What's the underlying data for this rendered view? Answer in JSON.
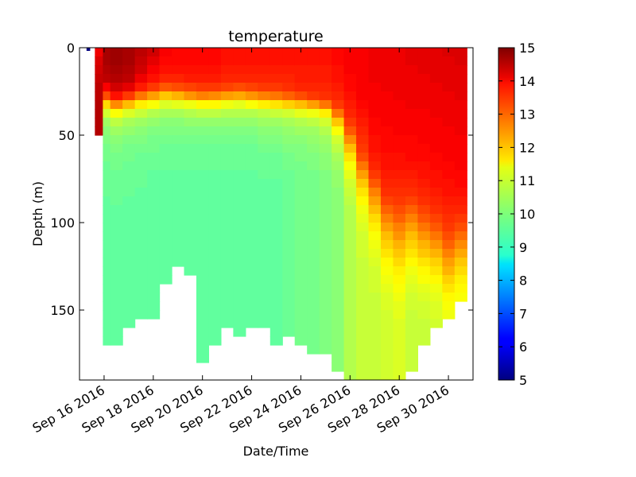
{
  "chart_data": {
    "type": "heatmap",
    "title": "temperature",
    "xlabel": "Date/Time",
    "ylabel": "Depth (m)",
    "x_ticks": [
      "Sep 16 2016",
      "Sep 18 2016",
      "Sep 20 2016",
      "Sep 22 2016",
      "Sep 24 2016",
      "Sep 26 2016",
      "Sep 28 2016",
      "Sep 30 2016"
    ],
    "xlim": [
      "2016-09-15",
      "2016-10-01"
    ],
    "y_ticks": [
      0,
      50,
      100,
      150
    ],
    "ylim": [
      190,
      0
    ],
    "y_inverted": true,
    "colorbar": {
      "label": "",
      "ticks": [
        5,
        6,
        7,
        8,
        9,
        10,
        11,
        12,
        13,
        14,
        15
      ],
      "range": [
        5,
        15
      ],
      "colormap": "jet"
    },
    "grid": false,
    "columns": [
      {
        "day": 0.35,
        "values": [
          5.0
        ]
      },
      {
        "day": 0.9,
        "values": [
          13.9,
          14.1,
          14.2,
          14.3,
          14.4,
          14.4,
          14.5,
          14.5,
          14.5,
          14.5
        ]
      },
      {
        "day": 1.0,
        "values": [
          14.6,
          14.6,
          14.5,
          14.4,
          13.8,
          13.0,
          11.6,
          10.8,
          10.3,
          10.1,
          10.0,
          9.9,
          9.9,
          9.8,
          9.8,
          9.8,
          9.8,
          9.7,
          9.7,
          9.7,
          9.7,
          9.7,
          9.7,
          9.7,
          9.7,
          9.7,
          9.7,
          9.7,
          9.7,
          9.7,
          9.7,
          9.7,
          9.7,
          9.7
        ]
      },
      {
        "day": 1.5,
        "values": [
          14.7,
          14.7,
          14.6,
          14.5,
          14.2,
          13.6,
          12.4,
          11.2,
          10.6,
          10.3,
          10.1,
          10.0,
          9.9,
          9.9,
          9.8,
          9.8,
          9.8,
          9.8,
          9.7,
          9.7,
          9.7,
          9.7,
          9.7,
          9.7,
          9.7,
          9.7,
          9.7,
          9.7,
          9.7,
          9.7,
          9.7,
          9.7,
          9.7,
          9.7
        ]
      },
      {
        "day": 2.0,
        "values": [
          14.6,
          14.6,
          14.5,
          14.4,
          14.0,
          13.2,
          11.9,
          10.9,
          10.4,
          10.2,
          10.0,
          9.9,
          9.9,
          9.8,
          9.8,
          9.8,
          9.8,
          9.7,
          9.7,
          9.7,
          9.7,
          9.7,
          9.7,
          9.7,
          9.7,
          9.7,
          9.7,
          9.7,
          9.7,
          9.7,
          9.7,
          9.7
        ]
      },
      {
        "day": 2.5,
        "values": [
          14.4,
          14.3,
          14.2,
          13.9,
          13.5,
          12.6,
          11.4,
          10.7,
          10.3,
          10.1,
          10.0,
          9.9,
          9.8,
          9.8,
          9.8,
          9.8,
          9.7,
          9.7,
          9.7,
          9.7,
          9.7,
          9.7,
          9.7,
          9.7,
          9.7,
          9.7,
          9.7,
          9.7,
          9.7,
          9.7,
          9.7
        ]
      },
      {
        "day": 3.0,
        "values": [
          14.2,
          14.0,
          13.8,
          13.6,
          13.2,
          12.2,
          11.2,
          10.5,
          10.2,
          10.0,
          9.9,
          9.9,
          9.8,
          9.8,
          9.7,
          9.7,
          9.7,
          9.7,
          9.7,
          9.7,
          9.7,
          9.7,
          9.7,
          9.7,
          9.7,
          9.7,
          9.7,
          9.7,
          9.7,
          9.7,
          9.7
        ]
      },
      {
        "day": 3.5,
        "values": [
          13.8,
          13.7,
          13.6,
          13.4,
          12.9,
          11.8,
          10.9,
          10.4,
          10.1,
          10.0,
          9.9,
          9.8,
          9.8,
          9.8,
          9.7,
          9.7,
          9.7,
          9.7,
          9.7,
          9.7,
          9.7,
          9.7,
          9.7,
          9.7,
          9.7,
          9.7,
          9.7
        ]
      },
      {
        "day": 4.0,
        "values": [
          13.7,
          13.7,
          13.6,
          13.4,
          13.0,
          12.0,
          11.0,
          10.4,
          10.1,
          10.0,
          9.9,
          9.8,
          9.8,
          9.8,
          9.7,
          9.7,
          9.7,
          9.7,
          9.7,
          9.7,
          9.7,
          9.7,
          9.7,
          9.7,
          9.7
        ]
      },
      {
        "day": 4.5,
        "values": [
          13.7,
          13.7,
          13.6,
          13.5,
          13.1,
          12.3,
          11.1,
          10.5,
          10.2,
          10.0,
          9.9,
          9.8,
          9.8,
          9.8,
          9.7,
          9.7,
          9.7,
          9.7,
          9.7,
          9.7,
          9.7,
          9.7,
          9.7,
          9.7,
          9.7,
          9.7
        ]
      },
      {
        "day": 5.0,
        "values": [
          13.7,
          13.7,
          13.6,
          13.5,
          13.2,
          12.5,
          11.3,
          10.6,
          10.2,
          10.0,
          9.9,
          9.8,
          9.8,
          9.8,
          9.7,
          9.7,
          9.7,
          9.7,
          9.7,
          9.7,
          9.7,
          9.7,
          9.7,
          9.7,
          9.7,
          9.7,
          9.7,
          9.7,
          9.7,
          9.7,
          9.7,
          9.7,
          9.7,
          9.7,
          9.7,
          9.7
        ]
      },
      {
        "day": 5.5,
        "values": [
          13.7,
          13.7,
          13.6,
          13.5,
          13.2,
          12.4,
          11.3,
          10.6,
          10.2,
          10.0,
          9.9,
          9.8,
          9.8,
          9.8,
          9.7,
          9.7,
          9.7,
          9.7,
          9.7,
          9.7,
          9.7,
          9.7,
          9.7,
          9.7,
          9.7,
          9.7,
          9.7,
          9.7,
          9.7,
          9.7,
          9.7,
          9.7,
          9.7,
          9.7
        ]
      },
      {
        "day": 6.0,
        "values": [
          13.6,
          13.6,
          13.5,
          13.4,
          13.1,
          12.2,
          11.1,
          10.5,
          10.2,
          10.0,
          9.9,
          9.8,
          9.8,
          9.8,
          9.7,
          9.7,
          9.7,
          9.7,
          9.7,
          9.7,
          9.7,
          9.7,
          9.7,
          9.7,
          9.7,
          9.7,
          9.7,
          9.7,
          9.7,
          9.7,
          9.7,
          9.7
        ]
      },
      {
        "day": 6.5,
        "values": [
          13.6,
          13.6,
          13.5,
          13.4,
          13.0,
          12.1,
          11.0,
          10.5,
          10.2,
          10.0,
          9.9,
          9.8,
          9.8,
          9.8,
          9.7,
          9.7,
          9.7,
          9.7,
          9.7,
          9.7,
          9.7,
          9.7,
          9.7,
          9.7,
          9.7,
          9.7,
          9.7,
          9.7,
          9.7,
          9.7,
          9.7,
          9.7,
          9.7
        ]
      },
      {
        "day": 7.0,
        "values": [
          13.6,
          13.6,
          13.5,
          13.4,
          13.1,
          12.3,
          11.2,
          10.5,
          10.2,
          10.0,
          9.9,
          9.8,
          9.8,
          9.8,
          9.7,
          9.7,
          9.7,
          9.7,
          9.7,
          9.7,
          9.7,
          9.7,
          9.7,
          9.7,
          9.7,
          9.7,
          9.7,
          9.7,
          9.7,
          9.7,
          9.7,
          9.7
        ]
      },
      {
        "day": 7.5,
        "values": [
          13.6,
          13.6,
          13.5,
          13.4,
          13.2,
          12.5,
          11.4,
          10.6,
          10.3,
          10.1,
          10.0,
          9.9,
          9.8,
          9.8,
          9.8,
          9.7,
          9.7,
          9.7,
          9.7,
          9.7,
          9.7,
          9.7,
          9.7,
          9.7,
          9.7,
          9.7,
          9.7,
          9.7,
          9.7,
          9.7,
          9.7,
          9.7
        ]
      },
      {
        "day": 8.0,
        "values": [
          13.6,
          13.6,
          13.5,
          13.4,
          13.2,
          12.6,
          11.5,
          10.7,
          10.3,
          10.1,
          10.0,
          9.9,
          9.8,
          9.8,
          9.8,
          9.7,
          9.7,
          9.7,
          9.7,
          9.7,
          9.7,
          9.7,
          9.7,
          9.7,
          9.7,
          9.7,
          9.7,
          9.7,
          9.7,
          9.7,
          9.7,
          9.7,
          9.7,
          9.7
        ]
      },
      {
        "day": 8.5,
        "values": [
          13.6,
          13.6,
          13.5,
          13.4,
          13.3,
          12.8,
          11.7,
          10.8,
          10.4,
          10.2,
          10.1,
          10.0,
          9.9,
          9.9,
          9.8,
          9.8,
          9.8,
          9.8,
          9.8,
          9.8,
          9.8,
          9.8,
          9.8,
          9.8,
          9.8,
          9.8,
          9.8,
          9.8,
          9.8,
          9.8,
          9.8,
          9.8,
          9.8
        ]
      },
      {
        "day": 9.0,
        "values": [
          13.6,
          13.6,
          13.5,
          13.5,
          13.4,
          13.0,
          11.9,
          11.0,
          10.5,
          10.3,
          10.1,
          10.0,
          10.0,
          9.9,
          9.9,
          9.9,
          9.9,
          9.9,
          9.9,
          9.9,
          9.9,
          9.9,
          9.9,
          9.9,
          9.9,
          9.9,
          9.9,
          9.9,
          9.9,
          9.9,
          9.9,
          9.9,
          9.9,
          9.9
        ]
      },
      {
        "day": 9.5,
        "values": [
          13.6,
          13.6,
          13.5,
          13.5,
          13.4,
          13.2,
          12.2,
          11.1,
          10.6,
          10.3,
          10.2,
          10.1,
          10.0,
          10.0,
          9.9,
          9.9,
          9.9,
          9.9,
          9.9,
          9.9,
          9.9,
          9.9,
          9.9,
          9.9,
          9.9,
          9.9,
          9.9,
          9.9,
          9.9,
          9.9,
          9.9,
          9.9,
          9.9,
          9.9,
          9.9
        ]
      },
      {
        "day": 10.0,
        "values": [
          13.6,
          13.6,
          13.5,
          13.5,
          13.4,
          13.3,
          12.6,
          11.4,
          10.8,
          10.5,
          10.3,
          10.2,
          10.1,
          10.1,
          10.0,
          10.0,
          10.0,
          10.0,
          10.0,
          10.0,
          10.0,
          10.0,
          10.0,
          10.0,
          10.0,
          10.0,
          10.0,
          10.0,
          10.0,
          10.0,
          10.0,
          10.0,
          10.0,
          10.0,
          10.0
        ]
      },
      {
        "day": 10.5,
        "values": [
          13.7,
          13.7,
          13.6,
          13.6,
          13.5,
          13.4,
          13.2,
          12.6,
          11.8,
          11.2,
          10.8,
          10.6,
          10.4,
          10.3,
          10.2,
          10.2,
          10.1,
          10.1,
          10.1,
          10.1,
          10.1,
          10.1,
          10.1,
          10.1,
          10.1,
          10.1,
          10.1,
          10.1,
          10.1,
          10.1,
          10.1,
          10.1,
          10.1,
          10.1,
          10.1,
          10.1,
          10.1
        ]
      },
      {
        "day": 11.0,
        "values": [
          13.8,
          13.8,
          13.8,
          13.7,
          13.7,
          13.6,
          13.5,
          13.4,
          13.2,
          12.9,
          12.4,
          11.9,
          11.5,
          11.2,
          11.0,
          10.8,
          10.7,
          10.6,
          10.5,
          10.5,
          10.5,
          10.5,
          10.5,
          10.5,
          10.5,
          10.5,
          10.5,
          10.5,
          10.5,
          10.5,
          10.5,
          10.5,
          10.5,
          10.5,
          10.5,
          10.5,
          10.5,
          10.5
        ]
      },
      {
        "day": 11.5,
        "values": [
          13.8,
          13.8,
          13.8,
          13.8,
          13.8,
          13.8,
          13.7,
          13.6,
          13.5,
          13.4,
          13.3,
          13.2,
          13.0,
          12.6,
          12.2,
          11.8,
          11.5,
          11.3,
          11.1,
          11.0,
          10.9,
          10.8,
          10.8,
          10.8,
          10.7,
          10.7,
          10.7,
          10.7,
          10.7,
          10.7,
          10.7,
          10.7,
          10.7,
          10.7,
          10.7,
          10.7,
          10.7,
          10.7
        ]
      },
      {
        "day": 12.0,
        "values": [
          13.9,
          13.9,
          13.9,
          13.9,
          13.8,
          13.8,
          13.8,
          13.8,
          13.7,
          13.7,
          13.6,
          13.6,
          13.5,
          13.4,
          13.2,
          12.9,
          12.5,
          12.2,
          11.9,
          11.6,
          11.4,
          11.2,
          11.1,
          11.0,
          10.9,
          10.8,
          10.8,
          10.8,
          10.7,
          10.7,
          10.7,
          10.7,
          10.7,
          10.7,
          10.7,
          10.7,
          10.7,
          10.7
        ]
      },
      {
        "day": 12.5,
        "values": [
          13.9,
          13.9,
          13.9,
          13.9,
          13.9,
          13.8,
          13.8,
          13.8,
          13.8,
          13.7,
          13.7,
          13.7,
          13.6,
          13.6,
          13.5,
          13.4,
          13.3,
          13.1,
          12.8,
          12.5,
          12.2,
          11.9,
          11.7,
          11.5,
          11.3,
          11.2,
          11.1,
          11.0,
          10.9,
          10.9,
          10.8,
          10.8,
          10.8,
          10.8,
          10.8,
          10.8,
          10.8,
          10.8
        ]
      },
      {
        "day": 13.0,
        "values": [
          13.9,
          13.9,
          13.9,
          13.9,
          13.9,
          13.9,
          13.8,
          13.8,
          13.8,
          13.8,
          13.7,
          13.7,
          13.6,
          13.6,
          13.5,
          13.4,
          13.3,
          13.2,
          13.0,
          12.8,
          12.5,
          12.3,
          12.0,
          11.8,
          11.6,
          11.4,
          11.3,
          11.2,
          11.1,
          11.0,
          11.0,
          10.9,
          10.9,
          10.9,
          10.9,
          10.9,
          10.9,
          10.9
        ]
      },
      {
        "day": 13.5,
        "values": [
          14.0,
          14.0,
          13.9,
          13.9,
          13.9,
          13.9,
          13.9,
          13.8,
          13.8,
          13.8,
          13.7,
          13.7,
          13.7,
          13.6,
          13.5,
          13.4,
          13.3,
          13.1,
          12.8,
          12.5,
          12.2,
          11.9,
          11.7,
          11.5,
          11.3,
          11.1,
          11.0,
          10.9,
          10.8,
          10.8,
          10.7,
          10.7,
          10.7,
          10.7,
          10.7,
          10.7,
          10.7
        ]
      },
      {
        "day": 14.0,
        "values": [
          14.0,
          14.0,
          14.0,
          13.9,
          13.9,
          13.9,
          13.9,
          13.8,
          13.8,
          13.8,
          13.8,
          13.7,
          13.7,
          13.6,
          13.6,
          13.5,
          13.4,
          13.3,
          13.1,
          12.9,
          12.6,
          12.3,
          12.0,
          11.8,
          11.5,
          11.3,
          11.2,
          11.0,
          10.9,
          10.8,
          10.8,
          10.7,
          10.7,
          10.7
        ]
      },
      {
        "day": 14.5,
        "values": [
          14.0,
          14.0,
          14.0,
          14.0,
          13.9,
          13.9,
          13.9,
          13.9,
          13.8,
          13.8,
          13.8,
          13.8,
          13.7,
          13.7,
          13.6,
          13.6,
          13.5,
          13.4,
          13.3,
          13.1,
          12.9,
          12.6,
          12.3,
          12.0,
          11.7,
          11.5,
          11.3,
          11.1,
          11.0,
          10.9,
          10.9,
          10.8
        ]
      },
      {
        "day": 15.0,
        "values": [
          14.1,
          14.0,
          14.0,
          14.0,
          14.0,
          13.9,
          13.9,
          13.9,
          13.9,
          13.8,
          13.8,
          13.8,
          13.8,
          13.7,
          13.7,
          13.6,
          13.6,
          13.5,
          13.4,
          13.3,
          13.2,
          13.0,
          12.8,
          12.5,
          12.2,
          12.0,
          11.7,
          11.5,
          11.3,
          11.2,
          11.1
        ]
      },
      {
        "day": 15.5,
        "values": [
          14.1,
          14.1,
          14.0,
          14.0,
          14.0,
          14.0,
          13.9,
          13.9,
          13.9,
          13.9,
          13.8,
          13.8,
          13.8,
          13.8,
          13.7,
          13.7,
          13.6,
          13.5,
          13.4,
          13.2,
          13.0,
          12.7,
          12.4,
          12.1,
          11.8,
          11.6,
          11.4,
          11.3,
          11.2
        ]
      }
    ]
  }
}
